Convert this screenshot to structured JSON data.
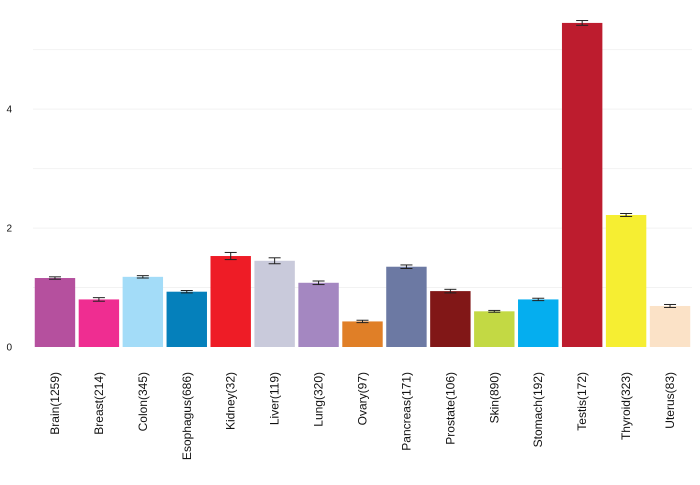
{
  "chart_data": {
    "type": "bar",
    "categories": [
      "Brain(1259)",
      "Breast(214)",
      "Colon(345)",
      "Esophagus(686)",
      "Kidney(32)",
      "Liver(119)",
      "Lung(320)",
      "Ovary(97)",
      "Pancreas(171)",
      "Prostate(106)",
      "Skin(890)",
      "Stomach(192)",
      "Testis(172)",
      "Thyroid(323)",
      "Uterus(83)"
    ],
    "values": [
      1.16,
      0.8,
      1.18,
      0.93,
      1.53,
      1.45,
      1.08,
      0.43,
      1.35,
      0.94,
      0.6,
      0.8,
      5.45,
      2.22,
      0.69
    ],
    "errors": [
      0.02,
      0.03,
      0.02,
      0.02,
      0.06,
      0.05,
      0.03,
      0.02,
      0.03,
      0.03,
      0.015,
      0.02,
      0.04,
      0.025,
      0.025
    ],
    "colors": [
      "#b5509e",
      "#ef2d91",
      "#a3dcf8",
      "#0580bb",
      "#ee1c26",
      "#c9cadb",
      "#a487c1",
      "#e07f27",
      "#6c79a3",
      "#811717",
      "#c3d944",
      "#05aeef",
      "#bd1c2e",
      "#f6ee32",
      "#fbe2c7"
    ],
    "yticks": [
      0,
      2,
      4
    ],
    "ylim": [
      0,
      5.6
    ],
    "title": "",
    "xlabel": "",
    "ylabel": "",
    "grid": true,
    "legend": "none"
  }
}
